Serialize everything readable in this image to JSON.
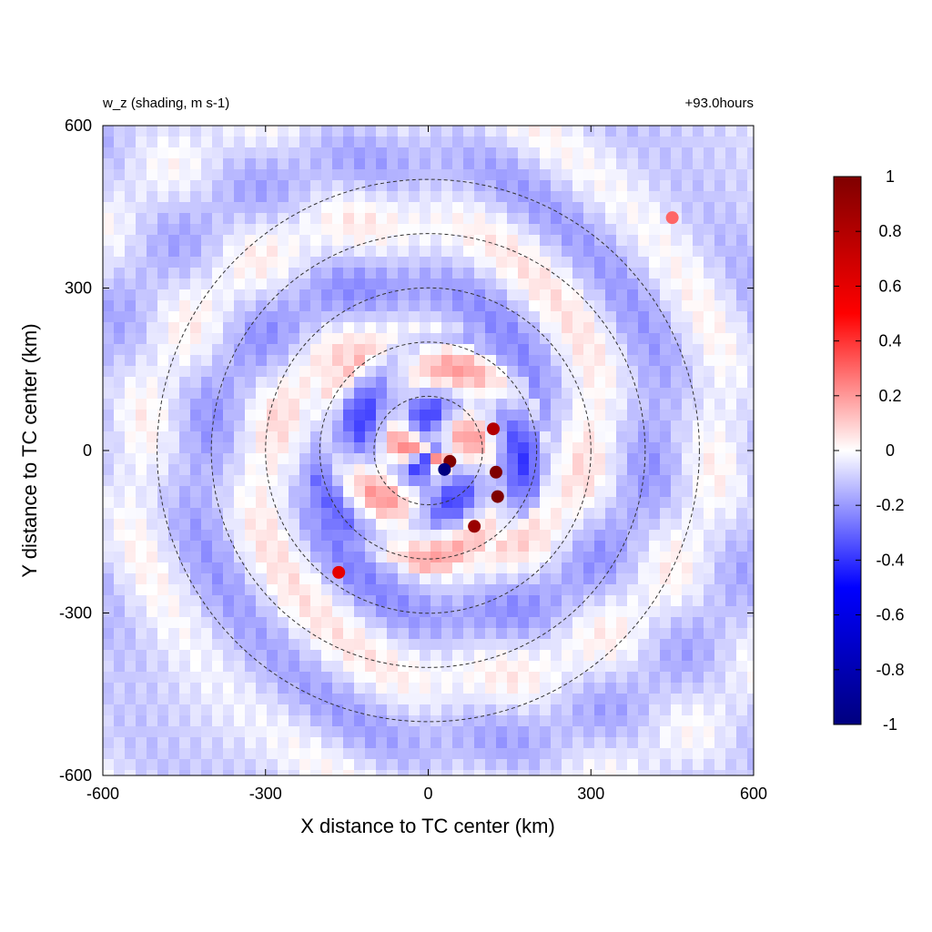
{
  "chart_data": {
    "type": "heatmap",
    "title_left": "w_z (shading, m s-1)",
    "title_right": "+93.0hours",
    "xlabel": "X distance to TC center (km)",
    "ylabel": "Y distance to TC center (km)",
    "xlim": [
      -600,
      600
    ],
    "ylim": [
      -600,
      600
    ],
    "x_ticks": [
      "-600",
      "-300",
      "0",
      "300",
      "600"
    ],
    "y_ticks": [
      "600",
      "300",
      "0",
      "-300",
      "-600"
    ],
    "colorbar": {
      "min": -1,
      "max": 1,
      "ticks": [
        "1",
        "0.8",
        "0.6",
        "0.4",
        "0.2",
        "0",
        "-0.2",
        "-0.4",
        "-0.6",
        "-0.8",
        "-1"
      ],
      "colors": [
        "#00007f",
        "#0000ff",
        "#ffffff",
        "#ff0000",
        "#7f0000"
      ]
    },
    "reference_circles_km": [
      100,
      200,
      300,
      400,
      500
    ],
    "circle_center_km": [
      0,
      0
    ],
    "features": [
      {
        "x": 40,
        "y": -20,
        "value": 1.0
      },
      {
        "x": 30,
        "y": -35,
        "value": -1.0
      },
      {
        "x": 125,
        "y": -40,
        "value": 1.0
      },
      {
        "x": 128,
        "y": -85,
        "value": 1.0
      },
      {
        "x": 85,
        "y": -140,
        "value": 0.9
      },
      {
        "x": 120,
        "y": 40,
        "value": 0.8
      },
      {
        "x": -165,
        "y": -225,
        "value": 0.6
      },
      {
        "x": 450,
        "y": 430,
        "value": 0.3
      }
    ]
  }
}
